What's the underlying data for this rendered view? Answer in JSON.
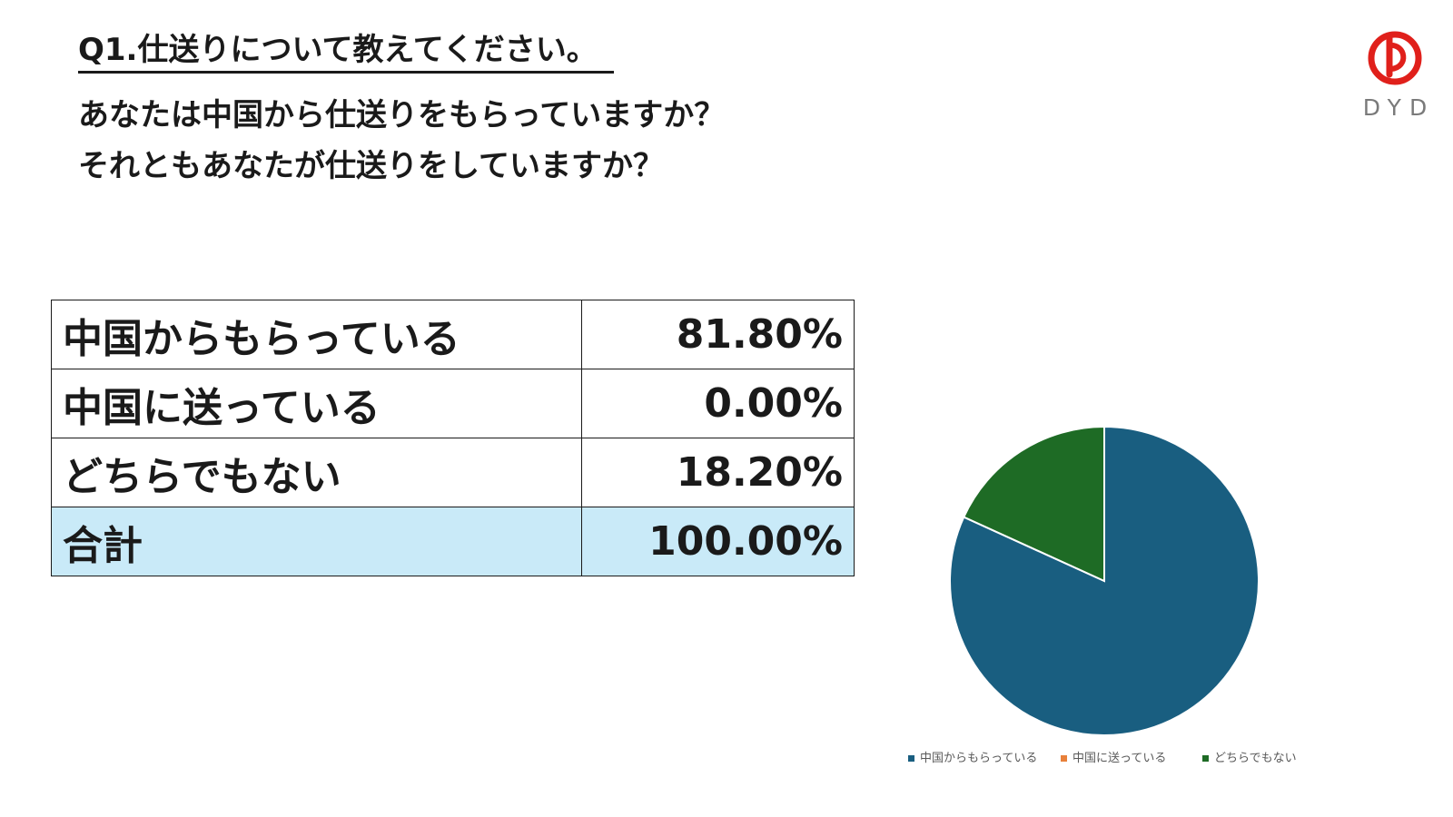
{
  "heading": {
    "question_title": "Q1.仕送りについて教えてください。",
    "question_line1": "あなたは中国から仕送りをもらっていますか？",
    "question_line2": "それともあなたが仕送りをしていますか？"
  },
  "logo": {
    "wordmark": "DYD",
    "color": "#e0201b"
  },
  "table": {
    "rows": [
      {
        "label": "中国からもらっている",
        "value": "81.80%"
      },
      {
        "label": "中国に送っている",
        "value": "0.00%"
      },
      {
        "label": "どちらでもない",
        "value": "18.20%"
      }
    ],
    "total": {
      "label": "合計",
      "value": "100.00%"
    }
  },
  "chart_data": {
    "type": "pie",
    "categories": [
      "中国からもらっている",
      "中国に送っている",
      "どちらでもない"
    ],
    "values": [
      81.8,
      0.0,
      18.2
    ],
    "colors": [
      "#195e80",
      "#e8803a",
      "#1e6b25"
    ],
    "legend_position": "bottom",
    "title": ""
  }
}
